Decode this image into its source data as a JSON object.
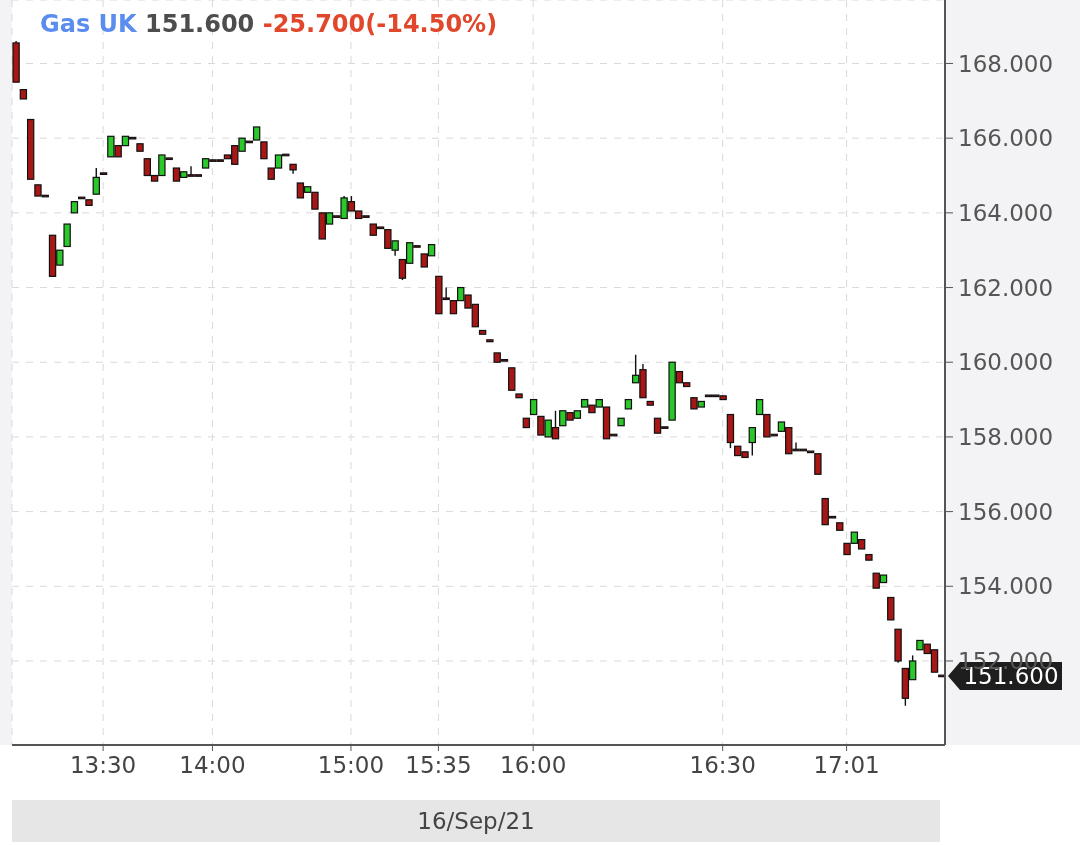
{
  "chart_data": {
    "type": "candlestick",
    "title": "Gas UK 151.600 -25.700(-14.50%)",
    "xlabel": "16/Sep/21",
    "categories": [
      null,
      null,
      null,
      null,
      null,
      null,
      null,
      null,
      null,
      null,
      null,
      null,
      "13:30",
      null,
      null,
      null,
      null,
      null,
      null,
      null,
      null,
      null,
      null,
      null,
      null,
      null,
      null,
      "14:00",
      null,
      null,
      null,
      null,
      null,
      null,
      null,
      null,
      null,
      null,
      null,
      null,
      null,
      null,
      null,
      null,
      null,
      null,
      "15:00",
      null,
      null,
      null,
      null,
      null,
      null,
      null,
      null,
      null,
      null,
      null,
      "15:35",
      null,
      null,
      null,
      null,
      null,
      null,
      null,
      null,
      null,
      null,
      null,
      null,
      "16:00",
      null,
      null,
      null,
      null,
      null,
      null,
      null,
      null,
      null,
      null,
      null,
      null,
      null,
      null,
      null,
      null,
      null,
      null,
      null,
      null,
      null,
      null,
      null,
      null,
      null,
      "16:30",
      null,
      null,
      null,
      null,
      null,
      null,
      null,
      null,
      null,
      null,
      null,
      null,
      null,
      null,
      null,
      null,
      "17:01",
      null,
      null,
      null,
      null,
      null,
      null,
      null,
      null,
      null,
      null,
      null,
      null,
      null
    ],
    "ohlc": [
      [
        168.55,
        168.6,
        167.5,
        167.5
      ],
      [
        167.3,
        167.3,
        167.05,
        167.05
      ],
      [
        166.5,
        166.5,
        164.9,
        164.9
      ],
      [
        164.75,
        164.75,
        164.45,
        164.45
      ],
      [
        164.45,
        164.45,
        164.45,
        164.45
      ],
      [
        163.4,
        163.4,
        162.3,
        162.3
      ],
      [
        162.6,
        163.0,
        162.6,
        163.0
      ],
      [
        163.1,
        163.7,
        163.1,
        163.7
      ],
      [
        164.0,
        164.3,
        164.0,
        164.3
      ],
      [
        164.4,
        164.4,
        164.4,
        164.4
      ],
      [
        164.35,
        164.35,
        164.2,
        164.2
      ],
      [
        164.5,
        165.2,
        164.5,
        164.95
      ],
      [
        165.05,
        165.05,
        165.05,
        165.05
      ],
      [
        165.5,
        166.05,
        165.5,
        166.05
      ],
      [
        165.8,
        165.8,
        165.5,
        165.5
      ],
      [
        165.8,
        166.05,
        165.8,
        166.05
      ],
      [
        166.0,
        166.0,
        166.0,
        166.0
      ],
      [
        165.85,
        165.85,
        165.65,
        165.65
      ],
      [
        165.45,
        165.45,
        165.0,
        165.0
      ],
      [
        165.0,
        165.0,
        164.85,
        164.85
      ],
      [
        165.0,
        165.55,
        165.0,
        165.55
      ],
      [
        165.45,
        165.45,
        165.45,
        165.45
      ],
      [
        165.2,
        165.2,
        164.85,
        164.85
      ],
      [
        164.95,
        165.1,
        164.95,
        165.1
      ],
      [
        165.0,
        165.25,
        165.0,
        165.0
      ],
      [
        165.0,
        165.0,
        165.0,
        165.0
      ],
      [
        165.2,
        165.45,
        165.2,
        165.45
      ],
      [
        165.4,
        165.4,
        165.4,
        165.4
      ],
      [
        165.4,
        165.4,
        165.4,
        165.4
      ],
      [
        165.55,
        165.55,
        165.45,
        165.45
      ],
      [
        165.8,
        165.8,
        165.3,
        165.3
      ],
      [
        165.65,
        166.0,
        165.65,
        166.0
      ],
      [
        165.9,
        165.9,
        165.9,
        165.9
      ],
      [
        165.95,
        166.3,
        165.95,
        166.3
      ],
      [
        165.9,
        165.9,
        165.45,
        165.45
      ],
      [
        165.2,
        165.2,
        164.9,
        164.9
      ],
      [
        165.2,
        165.55,
        165.2,
        165.55
      ],
      [
        165.55,
        165.55,
        165.55,
        165.55
      ],
      [
        165.3,
        165.3,
        165.05,
        165.15
      ],
      [
        164.8,
        164.8,
        164.4,
        164.4
      ],
      [
        164.55,
        164.7,
        164.55,
        164.7
      ],
      [
        164.55,
        164.55,
        164.1,
        164.1
      ],
      [
        164.0,
        164.0,
        163.3,
        163.3
      ],
      [
        163.7,
        164.0,
        163.7,
        164.0
      ],
      [
        163.9,
        163.9,
        163.9,
        163.9
      ],
      [
        163.85,
        164.45,
        163.85,
        164.4
      ],
      [
        164.3,
        164.45,
        164.05,
        164.05
      ],
      [
        164.05,
        164.05,
        163.85,
        163.85
      ],
      [
        163.9,
        163.9,
        163.9,
        163.9
      ],
      [
        163.7,
        163.7,
        163.4,
        163.4
      ],
      [
        163.6,
        163.6,
        163.6,
        163.6
      ],
      [
        163.55,
        163.55,
        163.05,
        163.05
      ],
      [
        163.0,
        163.25,
        162.85,
        163.25
      ],
      [
        162.75,
        162.75,
        162.2,
        162.25
      ],
      [
        162.65,
        163.2,
        162.65,
        163.2
      ],
      [
        163.1,
        163.1,
        163.1,
        163.1
      ],
      [
        162.9,
        162.9,
        162.55,
        162.55
      ],
      [
        162.85,
        163.15,
        162.85,
        163.15
      ],
      [
        162.3,
        162.3,
        161.3,
        161.3
      ],
      [
        161.7,
        162.0,
        161.7,
        161.7
      ],
      [
        161.65,
        161.65,
        161.3,
        161.3
      ],
      [
        161.65,
        162.0,
        161.65,
        162.0
      ],
      [
        161.8,
        161.8,
        161.45,
        161.45
      ],
      [
        161.55,
        161.55,
        160.95,
        160.95
      ],
      [
        160.85,
        160.85,
        160.75,
        160.75
      ],
      [
        160.6,
        160.6,
        160.55,
        160.55
      ],
      [
        160.25,
        160.25,
        160.0,
        160.0
      ],
      [
        160.05,
        160.05,
        160.05,
        160.05
      ],
      [
        159.85,
        159.85,
        159.25,
        159.25
      ],
      [
        159.15,
        159.15,
        159.05,
        159.05
      ],
      [
        158.5,
        158.5,
        158.25,
        158.25
      ],
      [
        158.6,
        159.0,
        158.6,
        159.0
      ],
      [
        158.55,
        158.55,
        158.05,
        158.05
      ],
      [
        158.0,
        158.45,
        158.0,
        158.45
      ],
      [
        158.25,
        158.7,
        157.95,
        157.95
      ],
      [
        158.3,
        158.7,
        158.3,
        158.7
      ],
      [
        158.65,
        158.65,
        158.45,
        158.45
      ],
      [
        158.5,
        158.7,
        158.5,
        158.7
      ],
      [
        158.8,
        159.0,
        158.8,
        159.0
      ],
      [
        158.85,
        158.85,
        158.65,
        158.65
      ],
      [
        158.8,
        159.0,
        158.8,
        159.0
      ],
      [
        158.8,
        158.8,
        157.95,
        157.95
      ],
      [
        158.05,
        158.05,
        158.05,
        158.05
      ],
      [
        158.3,
        158.5,
        158.3,
        158.5
      ],
      [
        158.75,
        159.0,
        158.75,
        159.0
      ],
      [
        159.45,
        160.2,
        159.45,
        159.65
      ],
      [
        159.8,
        159.95,
        159.05,
        159.05
      ],
      [
        158.95,
        158.95,
        158.85,
        158.85
      ],
      [
        158.5,
        158.5,
        158.1,
        158.1
      ],
      [
        158.25,
        158.25,
        158.25,
        158.25
      ],
      [
        158.45,
        160.0,
        158.45,
        160.0
      ],
      [
        159.75,
        159.75,
        159.45,
        159.45
      ],
      [
        159.45,
        159.45,
        159.35,
        159.35
      ],
      [
        159.05,
        159.05,
        158.75,
        158.75
      ],
      [
        158.8,
        158.95,
        158.8,
        158.95
      ],
      [
        159.1,
        159.1,
        159.1,
        159.1
      ],
      [
        159.1,
        159.1,
        159.1,
        159.1
      ],
      [
        159.1,
        159.1,
        159.0,
        159.0
      ],
      [
        158.6,
        158.6,
        157.7,
        157.85
      ],
      [
        157.75,
        157.75,
        157.5,
        157.5
      ],
      [
        157.6,
        157.6,
        157.45,
        157.45
      ],
      [
        157.85,
        158.25,
        157.5,
        158.25
      ],
      [
        158.6,
        159.0,
        158.6,
        159.0
      ],
      [
        158.6,
        158.6,
        158.0,
        158.0
      ],
      [
        158.05,
        158.05,
        158.05,
        158.05
      ],
      [
        158.15,
        158.4,
        158.15,
        158.4
      ],
      [
        158.25,
        158.25,
        157.55,
        157.55
      ],
      [
        157.65,
        157.85,
        157.65,
        157.65
      ],
      [
        157.65,
        157.65,
        157.65,
        157.65
      ],
      [
        157.6,
        157.6,
        157.6,
        157.6
      ],
      [
        157.55,
        157.55,
        157.0,
        157.0
      ],
      [
        156.35,
        156.35,
        155.65,
        155.65
      ],
      [
        155.85,
        155.85,
        155.85,
        155.85
      ],
      [
        155.7,
        155.7,
        155.5,
        155.5
      ],
      [
        155.15,
        155.15,
        154.85,
        154.85
      ],
      [
        155.15,
        155.45,
        155.15,
        155.45
      ],
      [
        155.25,
        155.25,
        155.0,
        155.0
      ],
      [
        154.85,
        154.85,
        154.7,
        154.7
      ],
      [
        154.35,
        154.35,
        153.95,
        153.95
      ],
      [
        154.1,
        154.3,
        154.1,
        154.3
      ],
      [
        153.7,
        153.7,
        153.1,
        153.1
      ],
      [
        152.85,
        152.85,
        151.95,
        152.0
      ],
      [
        151.8,
        151.8,
        150.8,
        151.0
      ],
      [
        151.5,
        152.15,
        151.5,
        152.0
      ],
      [
        152.3,
        152.55,
        152.3,
        152.55
      ],
      [
        152.45,
        152.45,
        152.2,
        152.2
      ],
      [
        152.3,
        152.3,
        151.7,
        151.7
      ],
      [
        151.6,
        151.6,
        151.6,
        151.6
      ]
    ],
    "colors": [
      "#a81616",
      "#a81616",
      "#a81616",
      "#a81616",
      "#a81616",
      "#a81616",
      "#2ac82a",
      "#2ac82a",
      "#2ac82a",
      "#a81616",
      "#a81616",
      "#2ac82a",
      "#a81616",
      "#2ac82a",
      "#a81616",
      "#2ac82a",
      "#a81616",
      "#a81616",
      "#a81616",
      "#a81616",
      "#2ac82a",
      "#a81616",
      "#a81616",
      "#2ac82a",
      "#a81616",
      "#a81616",
      "#2ac82a",
      "#a81616",
      "#a81616",
      "#a81616",
      "#a81616",
      "#2ac82a",
      "#a81616",
      "#2ac82a",
      "#a81616",
      "#a81616",
      "#2ac82a",
      "#a81616",
      "#a81616",
      "#a81616",
      "#2ac82a",
      "#a81616",
      "#a81616",
      "#2ac82a",
      "#a81616",
      "#2ac82a",
      "#a81616",
      "#a81616",
      "#a81616",
      "#a81616",
      "#a81616",
      "#a81616",
      "#2ac82a",
      "#a81616",
      "#2ac82a",
      "#a81616",
      "#a81616",
      "#2ac82a",
      "#a81616",
      "#a81616",
      "#a81616",
      "#2ac82a",
      "#a81616",
      "#a81616",
      "#a81616",
      "#a81616",
      "#a81616",
      "#a81616",
      "#a81616",
      "#a81616",
      "#a81616",
      "#2ac82a",
      "#a81616",
      "#2ac82a",
      "#a81616",
      "#2ac82a",
      "#a81616",
      "#2ac82a",
      "#2ac82a",
      "#a81616",
      "#2ac82a",
      "#a81616",
      "#a81616",
      "#2ac82a",
      "#2ac82a",
      "#2ac82a",
      "#a81616",
      "#a81616",
      "#a81616",
      "#a81616",
      "#2ac82a",
      "#a81616",
      "#a81616",
      "#a81616",
      "#2ac82a",
      "#a81616",
      "#a81616",
      "#a81616",
      "#a81616",
      "#a81616",
      "#a81616",
      "#2ac82a",
      "#2ac82a",
      "#a81616",
      "#a81616",
      "#2ac82a",
      "#a81616",
      "#a81616",
      "#a81616",
      "#a81616",
      "#a81616",
      "#a81616",
      "#a81616",
      "#a81616",
      "#a81616",
      "#2ac82a",
      "#a81616",
      "#a81616",
      "#a81616",
      "#2ac82a",
      "#a81616",
      "#a81616",
      "#a81616",
      "#2ac82a",
      "#2ac82a",
      "#a81616",
      "#a81616",
      "#a81616"
    ],
    "ylim": [
      149.75,
      169.7
    ],
    "yticks": [
      {
        "value": 152,
        "label": "152.000"
      },
      {
        "value": 154,
        "label": "154.000"
      },
      {
        "value": 156,
        "label": "156.000"
      },
      {
        "value": 158,
        "label": "158.000"
      },
      {
        "value": 160,
        "label": "160.000"
      },
      {
        "value": 162,
        "label": "162.000"
      },
      {
        "value": 164,
        "label": "164.000"
      },
      {
        "value": 166,
        "label": "166.000"
      },
      {
        "value": 168,
        "label": "168.000"
      }
    ],
    "grid": true,
    "annotations": [
      "151.600"
    ]
  }
}
